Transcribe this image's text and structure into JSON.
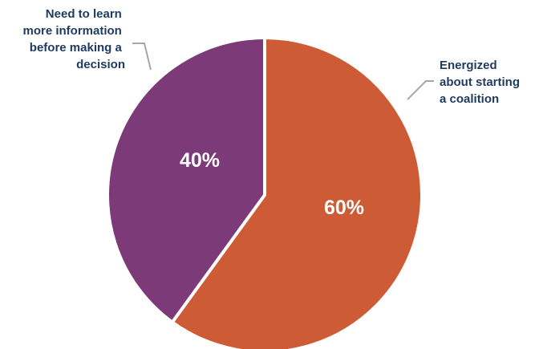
{
  "chart_data": {
    "type": "pie",
    "slices": [
      {
        "label": [
          "Energized",
          "about starting",
          "a coalition"
        ],
        "value": 60,
        "value_label": "60%",
        "color": "#cd5c36"
      },
      {
        "label": [
          "Need to learn",
          "more information",
          "before making a",
          "decision"
        ],
        "value": 40,
        "value_label": "40%",
        "color": "#7c3a78"
      }
    ],
    "label_color": "#1f3a5f",
    "value_label_color": "#ffffff",
    "leader_color": "#a6a6a6"
  }
}
